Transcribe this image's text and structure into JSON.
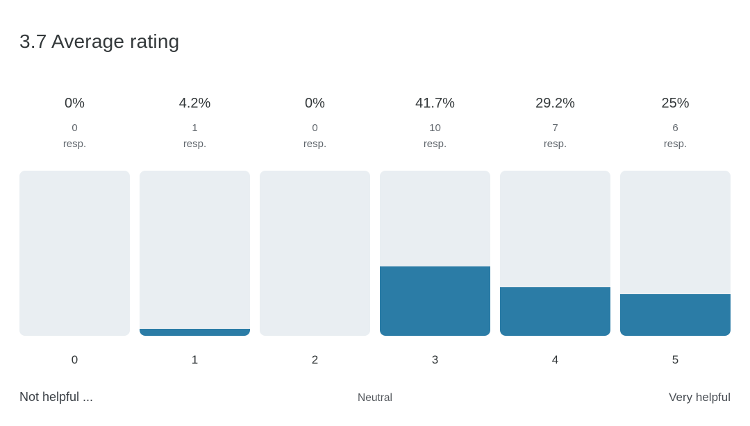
{
  "header": {
    "title": "3.7 Average rating"
  },
  "colors": {
    "bar_fill": "#2b7ca6",
    "bar_track": "#e9eef2",
    "text_primary": "#33383a",
    "text_secondary": "#62686e"
  },
  "chart_data": {
    "type": "bar",
    "title": "3.7 Average rating",
    "average_rating": 3.7,
    "categories": [
      "0",
      "1",
      "2",
      "3",
      "4",
      "5"
    ],
    "percentages": [
      0,
      4.2,
      0,
      41.7,
      29.2,
      25
    ],
    "percent_labels": [
      "0%",
      "4.2%",
      "0%",
      "41.7%",
      "29.2%",
      "25%"
    ],
    "response_counts": [
      "0",
      "1",
      "0",
      "10",
      "7",
      "6"
    ],
    "response_suffix": "resp.",
    "ylim": [
      0,
      100
    ],
    "legend": "none",
    "orientation": "vertical",
    "scale_labels": {
      "min": "Not helpful ...",
      "mid": "Neutral",
      "max": "Very helpful"
    }
  }
}
